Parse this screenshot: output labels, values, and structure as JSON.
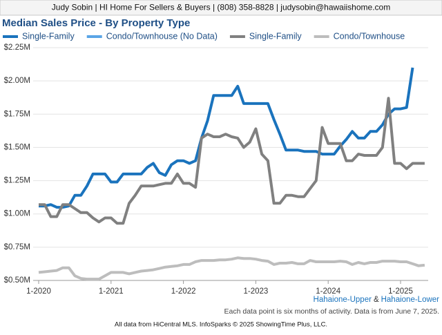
{
  "chart_data": {
    "type": "line",
    "header": "Judy Sobin | HI Home For Sellers & Buyers | (808) 358-8828 | judysobin@hawaiishome.com",
    "title": "Median Sales Price - By Property Type",
    "area_first": "Hahaione-Upper",
    "area_joiner": "&",
    "area_second": "Hahaione-Lower",
    "note": "Each data point is six months of activity. Data is from June 7, 2025.",
    "footer": "All data from HiCentral MLS. InfoSparks © 2025 ShowingTime Plus, LLC.",
    "grid": true,
    "legend": "top",
    "categories": [
      "1-2020",
      null,
      null,
      null,
      null,
      null,
      null,
      null,
      null,
      null,
      null,
      null,
      "1-2021",
      null,
      null,
      null,
      null,
      null,
      null,
      null,
      null,
      null,
      null,
      null,
      "1-2022",
      null,
      null,
      null,
      null,
      null,
      null,
      null,
      null,
      null,
      null,
      null,
      "1-2023",
      null,
      null,
      null,
      null,
      null,
      null,
      null,
      null,
      null,
      null,
      null,
      "1-2024",
      null,
      null,
      null,
      null,
      null,
      null,
      null,
      null,
      null,
      null,
      null,
      "1-2025",
      null,
      null,
      null,
      null
    ],
    "ylim": [
      500000,
      2250000
    ],
    "yticks": [
      {
        "value": 500000,
        "label": "$0.50M"
      },
      {
        "value": 750000,
        "label": "$0.75M"
      },
      {
        "value": 1000000,
        "label": "$1.00M"
      },
      {
        "value": 1250000,
        "label": "$1.25M"
      },
      {
        "value": 1500000,
        "label": "$1.50M"
      },
      {
        "value": 1750000,
        "label": "$1.75M"
      },
      {
        "value": 2000000,
        "label": "$2.00M"
      },
      {
        "value": 2250000,
        "label": "$2.25M"
      }
    ],
    "series": [
      {
        "name": "Single-Family",
        "color": "#1a73bd",
        "values": [
          1060000,
          1060000,
          1070000,
          1050000,
          1050000,
          1060000,
          1140000,
          1140000,
          1210000,
          1300000,
          1300000,
          1300000,
          1240000,
          1240000,
          1300000,
          1300000,
          1300000,
          1300000,
          1350000,
          1380000,
          1310000,
          1290000,
          1370000,
          1400000,
          1400000,
          1380000,
          1400000,
          1570000,
          1700000,
          1890000,
          1890000,
          1890000,
          1890000,
          1960000,
          1830000,
          1830000,
          1830000,
          1830000,
          1830000,
          1710000,
          1600000,
          1480000,
          1480000,
          1480000,
          1470000,
          1470000,
          1470000,
          1450000,
          1450000,
          1450000,
          1510000,
          1560000,
          1620000,
          1570000,
          1570000,
          1620000,
          1620000,
          1670000,
          1750000,
          1790000,
          1790000,
          1800000,
          2100000,
          null,
          null
        ]
      },
      {
        "name": "Condo/Townhouse (No Data)",
        "color": "#5aa5e6",
        "values": [
          null,
          null,
          null,
          null,
          null,
          null,
          null,
          null,
          null,
          null,
          null,
          null,
          null,
          null,
          null,
          null,
          null,
          null,
          null,
          null,
          null,
          null,
          null,
          null,
          null,
          null,
          null,
          null,
          null,
          null,
          null,
          null,
          null,
          null,
          null,
          null,
          null,
          null,
          null,
          null,
          null,
          null,
          null,
          null,
          null,
          null,
          null,
          null,
          null,
          null,
          null,
          null,
          null,
          null,
          null,
          null,
          null,
          null,
          null,
          null,
          null,
          null,
          null,
          null,
          null
        ]
      },
      {
        "name": "Single-Family",
        "color": "#808080",
        "values": [
          1070000,
          1070000,
          980000,
          980000,
          1070000,
          1070000,
          1040000,
          1010000,
          1010000,
          970000,
          940000,
          970000,
          970000,
          930000,
          930000,
          1080000,
          1140000,
          1210000,
          1210000,
          1210000,
          1220000,
          1230000,
          1230000,
          1300000,
          1230000,
          1230000,
          1200000,
          1570000,
          1600000,
          1580000,
          1580000,
          1600000,
          1580000,
          1570000,
          1500000,
          1540000,
          1640000,
          1450000,
          1400000,
          1080000,
          1080000,
          1140000,
          1140000,
          1130000,
          1130000,
          1190000,
          1250000,
          1650000,
          1530000,
          1530000,
          1530000,
          1400000,
          1400000,
          1450000,
          1440000,
          1440000,
          1440000,
          1500000,
          1870000,
          1380000,
          1380000,
          1340000,
          1380000,
          1380000,
          1380000
        ]
      },
      {
        "name": "Condo/Townhouse",
        "color": "#bdbdbd",
        "values": [
          560000,
          565000,
          570000,
          575000,
          595000,
          595000,
          535000,
          515000,
          510000,
          510000,
          510000,
          535000,
          560000,
          560000,
          560000,
          550000,
          560000,
          570000,
          575000,
          580000,
          590000,
          600000,
          605000,
          610000,
          620000,
          620000,
          640000,
          650000,
          650000,
          650000,
          655000,
          655000,
          660000,
          670000,
          665000,
          665000,
          660000,
          650000,
          645000,
          620000,
          630000,
          630000,
          635000,
          625000,
          625000,
          650000,
          640000,
          640000,
          640000,
          640000,
          645000,
          640000,
          620000,
          635000,
          625000,
          635000,
          635000,
          645000,
          645000,
          645000,
          640000,
          640000,
          625000,
          610000,
          615000
        ]
      }
    ]
  }
}
